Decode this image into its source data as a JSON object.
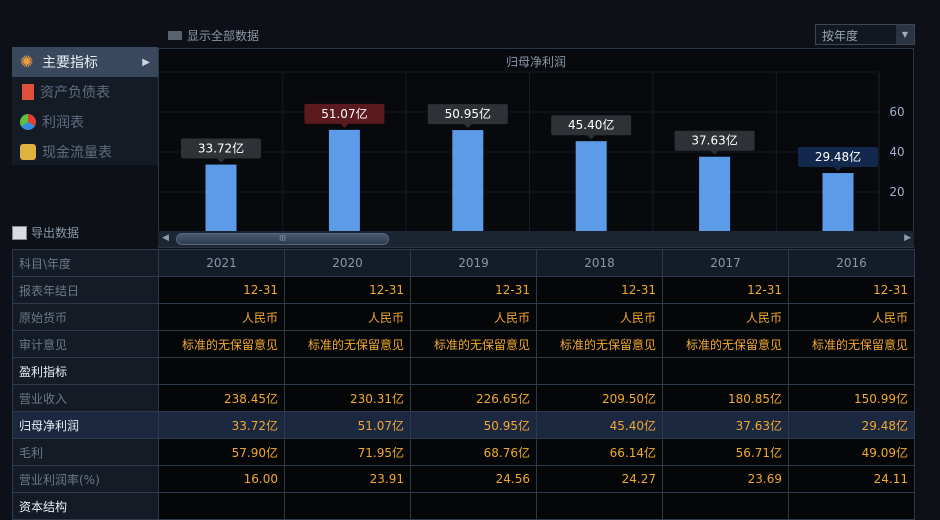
{
  "toolbar": {
    "show_all": "显示全部数据",
    "period": "按年度",
    "export": "导出数据"
  },
  "sidebar": {
    "items": [
      {
        "label": "主要指标",
        "icon": "asterisk-icon",
        "active": true
      },
      {
        "label": "资产负债表",
        "icon": "document-icon"
      },
      {
        "label": "利润表",
        "icon": "cube-icon"
      },
      {
        "label": "现金流量表",
        "icon": "coins-icon"
      }
    ]
  },
  "chart_data": {
    "type": "bar",
    "title": "归母净利润",
    "categories": [
      "2021",
      "2020",
      "2019",
      "2018",
      "2017",
      "2016"
    ],
    "values": [
      33.72,
      51.07,
      50.95,
      45.4,
      37.63,
      29.48
    ],
    "labels": [
      "33.72亿",
      "51.07亿",
      "50.95亿",
      "45.40亿",
      "37.63亿",
      "29.48亿"
    ],
    "label_colors": [
      "#2e3236",
      "#5a1a1e",
      "#2e3236",
      "#2e3236",
      "#2e3236",
      "#12284c"
    ],
    "bar_color": "#5b9be8",
    "yticks": [
      "20",
      "40",
      "60"
    ],
    "ylim": [
      0,
      80
    ],
    "axis": "right",
    "grid": true
  },
  "table": {
    "header": "科目\\年度",
    "years": [
      "2021",
      "2020",
      "2019",
      "2018",
      "2017",
      "2016"
    ],
    "rows": [
      {
        "label": "报表年结日",
        "values": [
          "12-31",
          "12-31",
          "12-31",
          "12-31",
          "12-31",
          "12-31"
        ]
      },
      {
        "label": "原始货币",
        "values": [
          "人民币",
          "人民币",
          "人民币",
          "人民币",
          "人民币",
          "人民币"
        ]
      },
      {
        "label": "审计意见",
        "values": [
          "标准的无保留意见",
          "标准的无保留意见",
          "标准的无保留意见",
          "标准的无保留意见",
          "标准的无保留意见",
          "标准的无保留意见"
        ]
      },
      {
        "label": "盈利指标",
        "section": true,
        "values": [
          "",
          "",
          "",
          "",
          "",
          ""
        ]
      },
      {
        "label": "营业收入",
        "values": [
          "238.45亿",
          "230.31亿",
          "226.65亿",
          "209.50亿",
          "180.85亿",
          "150.99亿"
        ]
      },
      {
        "label": "归母净利润",
        "highlight": true,
        "values": [
          "33.72亿",
          "51.07亿",
          "50.95亿",
          "45.40亿",
          "37.63亿",
          "29.48亿"
        ]
      },
      {
        "label": "毛利",
        "values": [
          "57.90亿",
          "71.95亿",
          "68.76亿",
          "66.14亿",
          "56.71亿",
          "49.09亿"
        ]
      },
      {
        "label": "营业利润率(%)",
        "values": [
          "16.00",
          "23.91",
          "24.56",
          "24.27",
          "23.69",
          "24.11"
        ]
      },
      {
        "label": "资本结构",
        "section": true,
        "values": [
          "",
          "",
          "",
          "",
          "",
          ""
        ]
      }
    ]
  }
}
